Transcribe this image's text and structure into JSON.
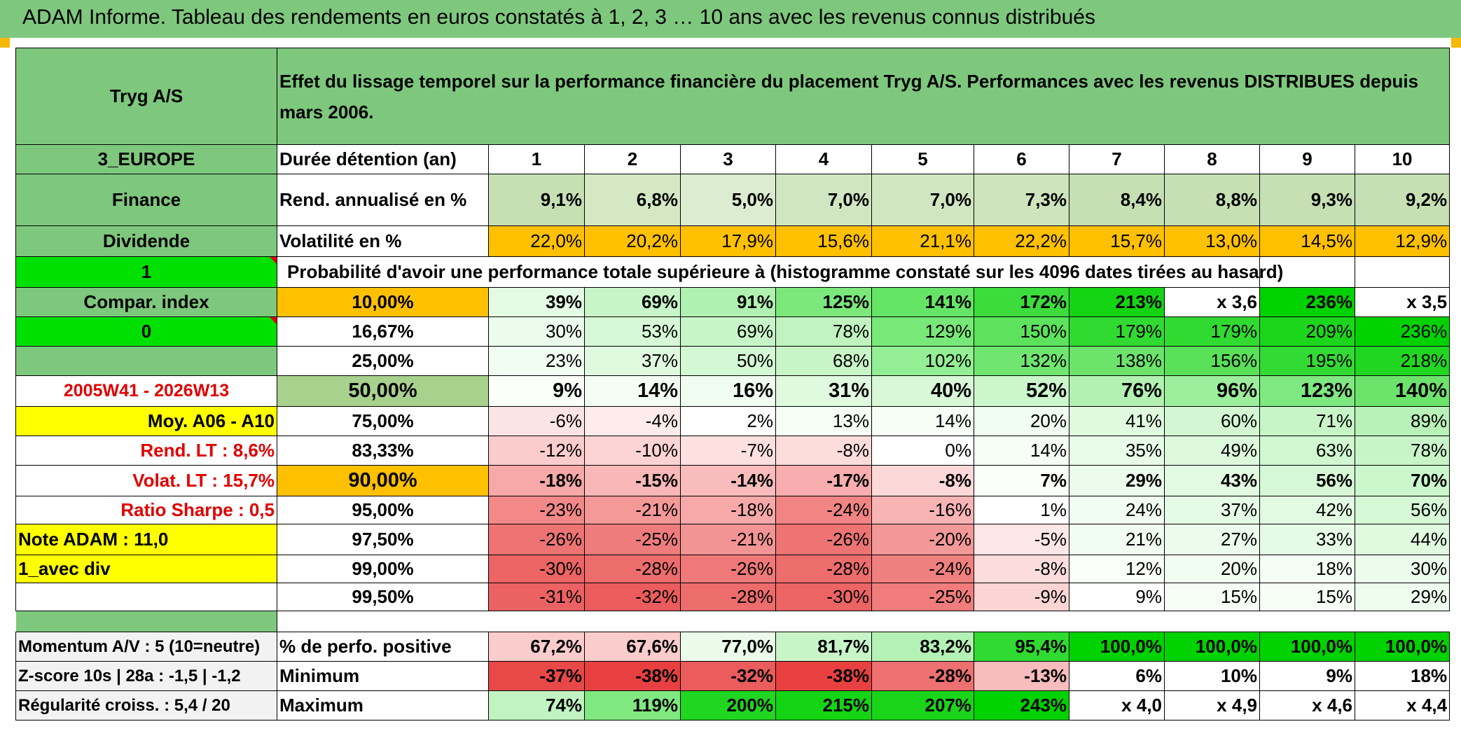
{
  "page_title": "ADAM Informe. Tableau des rendements en euros constatés à 1, 2, 3 … 10 ans avec les revenus connus distribués",
  "header": {
    "company": "Tryg A/S",
    "description": "Effet du lissage temporel sur la performance financière du placement Tryg A/S. Performances avec les revenus DISTRIBUES depuis mars 2006."
  },
  "side": {
    "region": "3_EUROPE",
    "sector": "Finance",
    "type": "Dividende",
    "one": "1",
    "compar": "Compar. index",
    "zero": "0",
    "period": "2005W41 - 2026W13",
    "moy": "Moy. A06 - A10",
    "rend_lt": "Rend. LT :   8,6%",
    "volat_lt": "Volat. LT :   15,7%",
    "sharpe": "Ratio Sharpe :   0,5",
    "note": "Note ADAM : 11,0",
    "avec_div": "1_avec div",
    "momentum": "Momentum A/V : 5 (10=neutre)",
    "zscore": "Z-score 10s | 28a : -1,5 | -1,2",
    "regularite": "Régularité croiss. : 5,4 / 20"
  },
  "labels": {
    "duree": "Durée détention (an)",
    "rend": "Rend. annualisé en %",
    "vol": "Volatilité en %",
    "proba": "Probabilité d'avoir une performance totale supérieure à (histogramme constaté sur les 4096 dates tirées au hasard)",
    "pos": "% de perfo. positive",
    "min": "Minimum",
    "max": "Maximum"
  },
  "years": [
    "1",
    "2",
    "3",
    "4",
    "5",
    "6",
    "7",
    "8",
    "9",
    "10"
  ],
  "rend": [
    "9,1%",
    "6,8%",
    "5,0%",
    "7,0%",
    "7,0%",
    "7,3%",
    "8,4%",
    "8,8%",
    "9,3%",
    "9,2%"
  ],
  "vol": [
    "22,0%",
    "20,2%",
    "17,9%",
    "15,6%",
    "21,1%",
    "22,2%",
    "15,7%",
    "13,0%",
    "14,5%",
    "12,9%"
  ],
  "prob_rows": [
    {
      "p": "10,00%",
      "v": [
        "39%",
        "69%",
        "91%",
        "125%",
        "141%",
        "172%",
        "213%",
        "x 3,6",
        "236%",
        "x 3,5"
      ]
    },
    {
      "p": "16,67%",
      "v": [
        "30%",
        "53%",
        "69%",
        "78%",
        "129%",
        "150%",
        "179%",
        "179%",
        "209%",
        "236%"
      ]
    },
    {
      "p": "25,00%",
      "v": [
        "23%",
        "37%",
        "50%",
        "68%",
        "102%",
        "132%",
        "138%",
        "156%",
        "195%",
        "218%"
      ]
    },
    {
      "p": "50,00%",
      "v": [
        "9%",
        "14%",
        "16%",
        "31%",
        "40%",
        "52%",
        "76%",
        "96%",
        "123%",
        "140%"
      ]
    },
    {
      "p": "75,00%",
      "v": [
        "-6%",
        "-4%",
        "2%",
        "13%",
        "14%",
        "20%",
        "41%",
        "60%",
        "71%",
        "89%"
      ]
    },
    {
      "p": "83,33%",
      "v": [
        "-12%",
        "-10%",
        "-7%",
        "-8%",
        "0%",
        "14%",
        "35%",
        "49%",
        "63%",
        "78%"
      ]
    },
    {
      "p": "90,00%",
      "v": [
        "-18%",
        "-15%",
        "-14%",
        "-17%",
        "-8%",
        "7%",
        "29%",
        "43%",
        "56%",
        "70%"
      ]
    },
    {
      "p": "95,00%",
      "v": [
        "-23%",
        "-21%",
        "-18%",
        "-24%",
        "-16%",
        "1%",
        "24%",
        "37%",
        "42%",
        "56%"
      ]
    },
    {
      "p": "97,50%",
      "v": [
        "-26%",
        "-25%",
        "-21%",
        "-26%",
        "-20%",
        "-5%",
        "21%",
        "27%",
        "33%",
        "44%"
      ]
    },
    {
      "p": "99,00%",
      "v": [
        "-30%",
        "-28%",
        "-26%",
        "-28%",
        "-24%",
        "-8%",
        "12%",
        "20%",
        "18%",
        "30%"
      ]
    },
    {
      "p": "99,50%",
      "v": [
        "-31%",
        "-32%",
        "-28%",
        "-30%",
        "-25%",
        "-9%",
        "9%",
        "15%",
        "15%",
        "29%"
      ]
    }
  ],
  "pos": [
    "67,2%",
    "67,6%",
    "77,0%",
    "81,7%",
    "83,2%",
    "95,4%",
    "100,0%",
    "100,0%",
    "100,0%",
    "100,0%"
  ],
  "min": [
    "-37%",
    "-38%",
    "-32%",
    "-38%",
    "-28%",
    "-13%",
    "6%",
    "10%",
    "9%",
    "18%"
  ],
  "max": [
    "74%",
    "119%",
    "200%",
    "215%",
    "207%",
    "243%",
    "x 4,0",
    "x 4,9",
    "x 4,6",
    "x 4,4"
  ],
  "colors": {
    "header_green": "#7ec87e",
    "bright_green": "#00e000",
    "orange": "#ffc000",
    "yellow": "#ffff00",
    "red_text": "#e00000"
  }
}
